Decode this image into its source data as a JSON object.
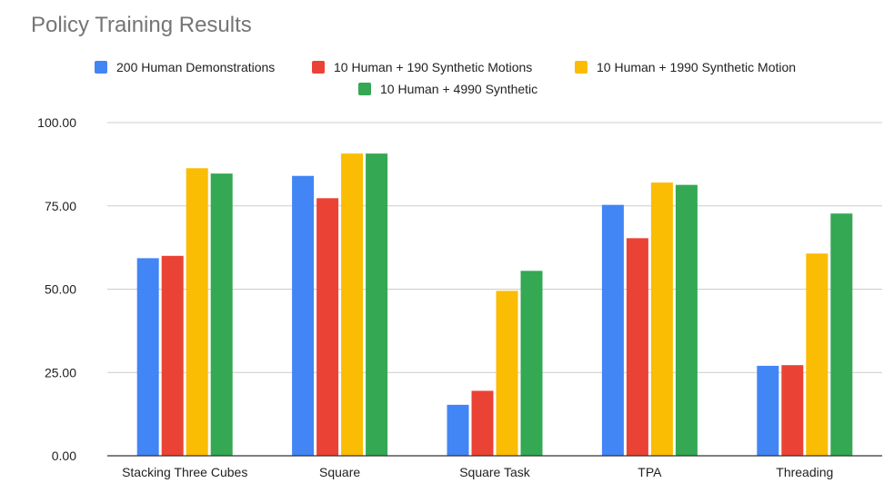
{
  "chart_data": {
    "type": "bar",
    "title": "Policy Training Results",
    "xlabel": "",
    "ylabel": "",
    "ylim": [
      0,
      100
    ],
    "yticks": [
      "0.00",
      "25.00",
      "50.00",
      "75.00",
      "100.00"
    ],
    "ytick_values": [
      0,
      25,
      50,
      75,
      100
    ],
    "categories": [
      "Stacking Three Cubes",
      "Square",
      "Square Task",
      "TPA",
      "Threading"
    ],
    "series": [
      {
        "name": "200 Human Demonstrations",
        "color": "#4285f4",
        "values": [
          59.3,
          84.0,
          15.3,
          75.3,
          27.0
        ]
      },
      {
        "name": "10 Human + 190 Synthetic Motions",
        "color": "#ea4335",
        "values": [
          60.0,
          77.3,
          19.5,
          65.3,
          27.2
        ]
      },
      {
        "name": "10 Human + 1990 Synthetic Motion",
        "color": "#fbbc04",
        "values": [
          86.3,
          90.7,
          49.5,
          82.0,
          60.7
        ]
      },
      {
        "name": "10 Human + 4990 Synthetic",
        "color": "#34a853",
        "values": [
          84.7,
          90.7,
          55.5,
          81.3,
          72.7
        ]
      }
    ],
    "grid": true,
    "legend_position": "top"
  }
}
